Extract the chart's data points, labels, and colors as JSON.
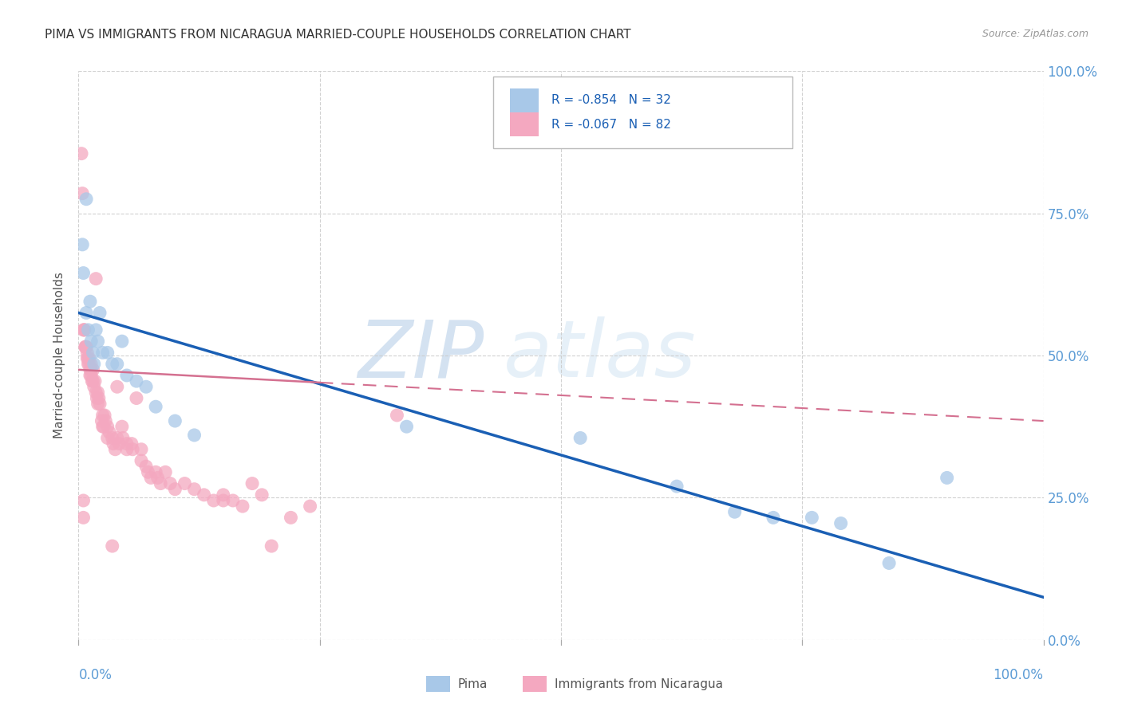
{
  "title": "PIMA VS IMMIGRANTS FROM NICARAGUA MARRIED-COUPLE HOUSEHOLDS CORRELATION CHART",
  "source": "Source: ZipAtlas.com",
  "ylabel_left": "Married-couple Households",
  "y_tick_labels_right": [
    "0.0%",
    "25.0%",
    "50.0%",
    "75.0%",
    "100.0%"
  ],
  "legend_bottom": [
    "Pima",
    "Immigrants from Nicaragua"
  ],
  "pima_color": "#a8c8e8",
  "nicaragua_color": "#f4a8c0",
  "pima_line_color": "#1a5fb4",
  "nicaragua_line_color": "#d47090",
  "watermark_zip": "ZIP",
  "watermark_atlas": "atlas",
  "background_color": "#ffffff",
  "grid_color": "#cccccc",
  "pima_R": -0.854,
  "pima_N": 32,
  "nicaragua_R": -0.067,
  "nicaragua_N": 82,
  "pima_line": [
    0.0,
    0.575,
    1.0,
    0.075
  ],
  "nicaragua_line": [
    0.0,
    0.475,
    1.0,
    0.385
  ],
  "pima_points": [
    [
      0.004,
      0.695
    ],
    [
      0.005,
      0.645
    ],
    [
      0.008,
      0.775
    ],
    [
      0.008,
      0.575
    ],
    [
      0.01,
      0.545
    ],
    [
      0.012,
      0.595
    ],
    [
      0.013,
      0.525
    ],
    [
      0.015,
      0.505
    ],
    [
      0.016,
      0.485
    ],
    [
      0.018,
      0.545
    ],
    [
      0.02,
      0.525
    ],
    [
      0.022,
      0.575
    ],
    [
      0.025,
      0.505
    ],
    [
      0.03,
      0.505
    ],
    [
      0.035,
      0.485
    ],
    [
      0.04,
      0.485
    ],
    [
      0.045,
      0.525
    ],
    [
      0.05,
      0.465
    ],
    [
      0.06,
      0.455
    ],
    [
      0.07,
      0.445
    ],
    [
      0.08,
      0.41
    ],
    [
      0.1,
      0.385
    ],
    [
      0.12,
      0.36
    ],
    [
      0.34,
      0.375
    ],
    [
      0.52,
      0.355
    ],
    [
      0.62,
      0.27
    ],
    [
      0.68,
      0.225
    ],
    [
      0.72,
      0.215
    ],
    [
      0.76,
      0.215
    ],
    [
      0.79,
      0.205
    ],
    [
      0.84,
      0.135
    ],
    [
      0.9,
      0.285
    ]
  ],
  "nicaragua_points": [
    [
      0.003,
      0.855
    ],
    [
      0.004,
      0.785
    ],
    [
      0.018,
      0.635
    ],
    [
      0.005,
      0.545
    ],
    [
      0.006,
      0.545
    ],
    [
      0.006,
      0.545
    ],
    [
      0.007,
      0.515
    ],
    [
      0.007,
      0.515
    ],
    [
      0.008,
      0.515
    ],
    [
      0.008,
      0.515
    ],
    [
      0.009,
      0.505
    ],
    [
      0.009,
      0.495
    ],
    [
      0.01,
      0.495
    ],
    [
      0.01,
      0.485
    ],
    [
      0.011,
      0.495
    ],
    [
      0.011,
      0.485
    ],
    [
      0.012,
      0.475
    ],
    [
      0.012,
      0.465
    ],
    [
      0.013,
      0.475
    ],
    [
      0.013,
      0.465
    ],
    [
      0.014,
      0.455
    ],
    [
      0.015,
      0.475
    ],
    [
      0.015,
      0.455
    ],
    [
      0.016,
      0.445
    ],
    [
      0.017,
      0.455
    ],
    [
      0.018,
      0.435
    ],
    [
      0.019,
      0.425
    ],
    [
      0.02,
      0.435
    ],
    [
      0.02,
      0.415
    ],
    [
      0.021,
      0.425
    ],
    [
      0.022,
      0.415
    ],
    [
      0.025,
      0.395
    ],
    [
      0.025,
      0.375
    ],
    [
      0.027,
      0.395
    ],
    [
      0.028,
      0.385
    ],
    [
      0.03,
      0.375
    ],
    [
      0.03,
      0.355
    ],
    [
      0.032,
      0.365
    ],
    [
      0.035,
      0.355
    ],
    [
      0.036,
      0.345
    ],
    [
      0.038,
      0.335
    ],
    [
      0.04,
      0.445
    ],
    [
      0.04,
      0.355
    ],
    [
      0.042,
      0.345
    ],
    [
      0.045,
      0.375
    ],
    [
      0.046,
      0.355
    ],
    [
      0.05,
      0.345
    ],
    [
      0.05,
      0.335
    ],
    [
      0.055,
      0.345
    ],
    [
      0.056,
      0.335
    ],
    [
      0.06,
      0.425
    ],
    [
      0.065,
      0.335
    ],
    [
      0.065,
      0.315
    ],
    [
      0.07,
      0.305
    ],
    [
      0.072,
      0.295
    ],
    [
      0.075,
      0.285
    ],
    [
      0.08,
      0.295
    ],
    [
      0.082,
      0.285
    ],
    [
      0.085,
      0.275
    ],
    [
      0.09,
      0.295
    ],
    [
      0.095,
      0.275
    ],
    [
      0.1,
      0.265
    ],
    [
      0.11,
      0.275
    ],
    [
      0.12,
      0.265
    ],
    [
      0.13,
      0.255
    ],
    [
      0.15,
      0.245
    ],
    [
      0.16,
      0.245
    ],
    [
      0.17,
      0.235
    ],
    [
      0.18,
      0.275
    ],
    [
      0.19,
      0.255
    ],
    [
      0.2,
      0.165
    ],
    [
      0.22,
      0.215
    ],
    [
      0.24,
      0.235
    ],
    [
      0.15,
      0.255
    ],
    [
      0.14,
      0.245
    ],
    [
      0.035,
      0.165
    ],
    [
      0.005,
      0.215
    ],
    [
      0.005,
      0.245
    ],
    [
      0.026,
      0.375
    ],
    [
      0.024,
      0.385
    ],
    [
      0.013,
      0.485
    ],
    [
      0.33,
      0.395
    ]
  ]
}
